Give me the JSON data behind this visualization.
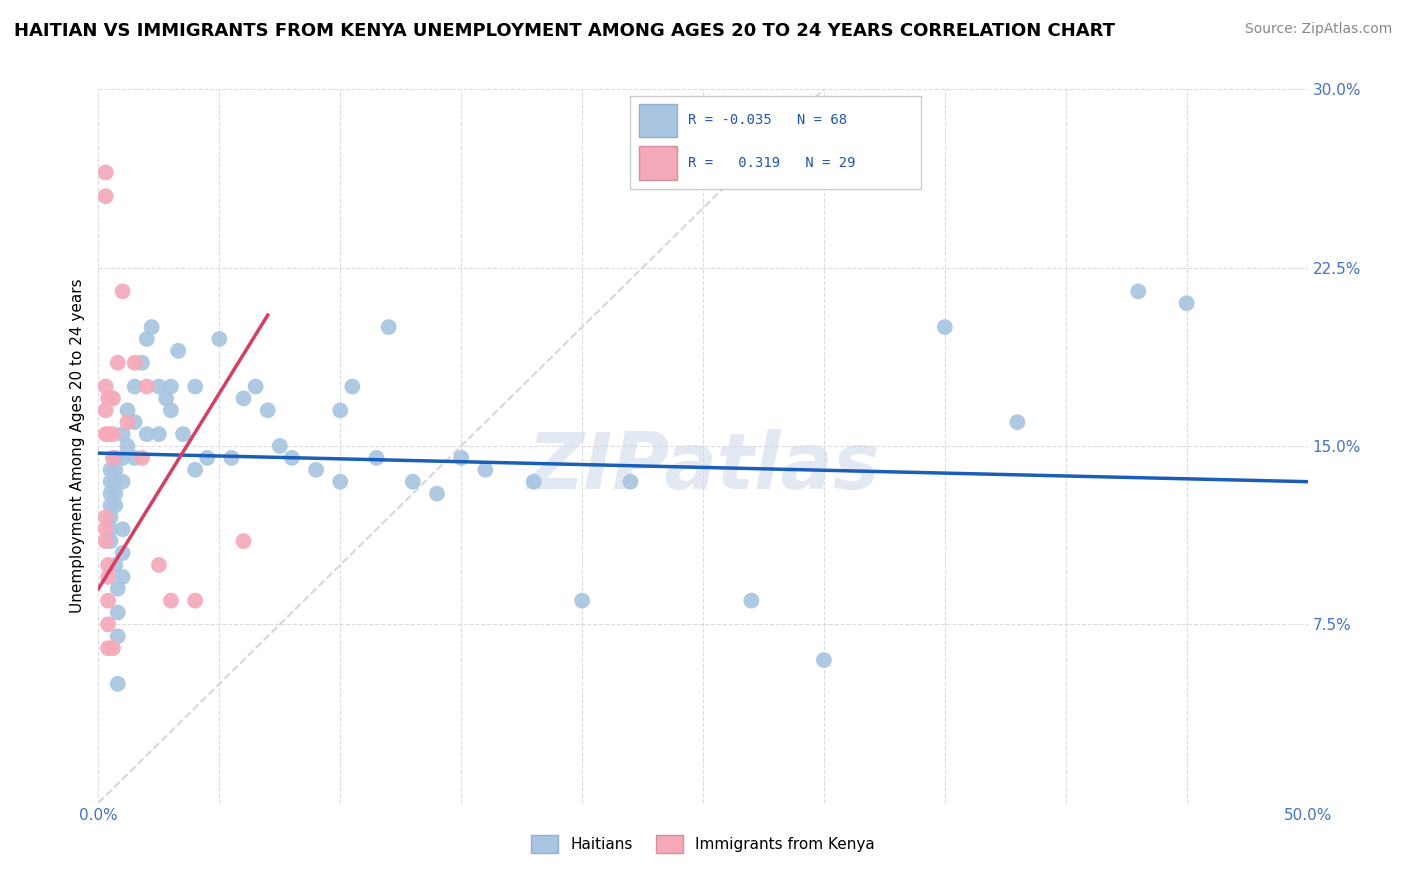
{
  "title": "HAITIAN VS IMMIGRANTS FROM KENYA UNEMPLOYMENT AMONG AGES 20 TO 24 YEARS CORRELATION CHART",
  "source": "Source: ZipAtlas.com",
  "ylabel": "Unemployment Among Ages 20 to 24 years",
  "xlim": [
    0.0,
    0.5
  ],
  "ylim": [
    0.0,
    0.3
  ],
  "yticks": [
    0.0,
    0.075,
    0.15,
    0.225,
    0.3
  ],
  "ytick_labels": [
    "",
    "7.5%",
    "15.0%",
    "22.5%",
    "30.0%"
  ],
  "xticks": [
    0.0,
    0.05,
    0.1,
    0.15,
    0.2,
    0.25,
    0.3,
    0.35,
    0.4,
    0.45,
    0.5
  ],
  "color_haitian": "#a8c4e0",
  "color_kenya": "#f4a8b8",
  "line_color_haitian": "#1a5eb8",
  "line_color_kenya": "#d44060",
  "diagonal_color": "#cccccc",
  "watermark": "ZIPatlas",
  "haitian_x": [
    0.005,
    0.005,
    0.005,
    0.005,
    0.005,
    0.005,
    0.005,
    0.007,
    0.007,
    0.007,
    0.007,
    0.007,
    0.007,
    0.008,
    0.008,
    0.008,
    0.008,
    0.01,
    0.01,
    0.01,
    0.01,
    0.01,
    0.01,
    0.012,
    0.012,
    0.015,
    0.015,
    0.015,
    0.018,
    0.02,
    0.02,
    0.022,
    0.025,
    0.025,
    0.028,
    0.03,
    0.03,
    0.033,
    0.035,
    0.04,
    0.04,
    0.045,
    0.05,
    0.055,
    0.06,
    0.065,
    0.07,
    0.075,
    0.08,
    0.09,
    0.1,
    0.1,
    0.105,
    0.115,
    0.12,
    0.13,
    0.14,
    0.15,
    0.16,
    0.18,
    0.2,
    0.22,
    0.27,
    0.3,
    0.35,
    0.38,
    0.43,
    0.45
  ],
  "haitian_y": [
    0.14,
    0.135,
    0.13,
    0.125,
    0.12,
    0.115,
    0.11,
    0.145,
    0.14,
    0.135,
    0.13,
    0.125,
    0.1,
    0.09,
    0.08,
    0.07,
    0.05,
    0.155,
    0.145,
    0.135,
    0.115,
    0.105,
    0.095,
    0.165,
    0.15,
    0.175,
    0.16,
    0.145,
    0.185,
    0.195,
    0.155,
    0.2,
    0.175,
    0.155,
    0.17,
    0.175,
    0.165,
    0.19,
    0.155,
    0.175,
    0.14,
    0.145,
    0.195,
    0.145,
    0.17,
    0.175,
    0.165,
    0.15,
    0.145,
    0.14,
    0.135,
    0.165,
    0.175,
    0.145,
    0.2,
    0.135,
    0.13,
    0.145,
    0.14,
    0.135,
    0.085,
    0.135,
    0.085,
    0.06,
    0.2,
    0.16,
    0.215,
    0.21
  ],
  "kenya_x": [
    0.003,
    0.003,
    0.003,
    0.003,
    0.003,
    0.003,
    0.003,
    0.003,
    0.004,
    0.004,
    0.004,
    0.004,
    0.004,
    0.004,
    0.004,
    0.006,
    0.006,
    0.006,
    0.006,
    0.008,
    0.01,
    0.012,
    0.015,
    0.018,
    0.02,
    0.025,
    0.03,
    0.04,
    0.06
  ],
  "kenya_y": [
    0.265,
    0.255,
    0.175,
    0.165,
    0.155,
    0.12,
    0.115,
    0.11,
    0.17,
    0.155,
    0.1,
    0.095,
    0.085,
    0.075,
    0.065,
    0.17,
    0.155,
    0.145,
    0.065,
    0.185,
    0.215,
    0.16,
    0.185,
    0.145,
    0.175,
    0.1,
    0.085,
    0.085,
    0.11
  ],
  "haitian_line_x0": 0.0,
  "haitian_line_x1": 0.5,
  "haitian_line_y0": 0.147,
  "haitian_line_y1": 0.135,
  "kenya_line_x0": 0.0,
  "kenya_line_x1": 0.07,
  "kenya_line_y0": 0.09,
  "kenya_line_y1": 0.205
}
